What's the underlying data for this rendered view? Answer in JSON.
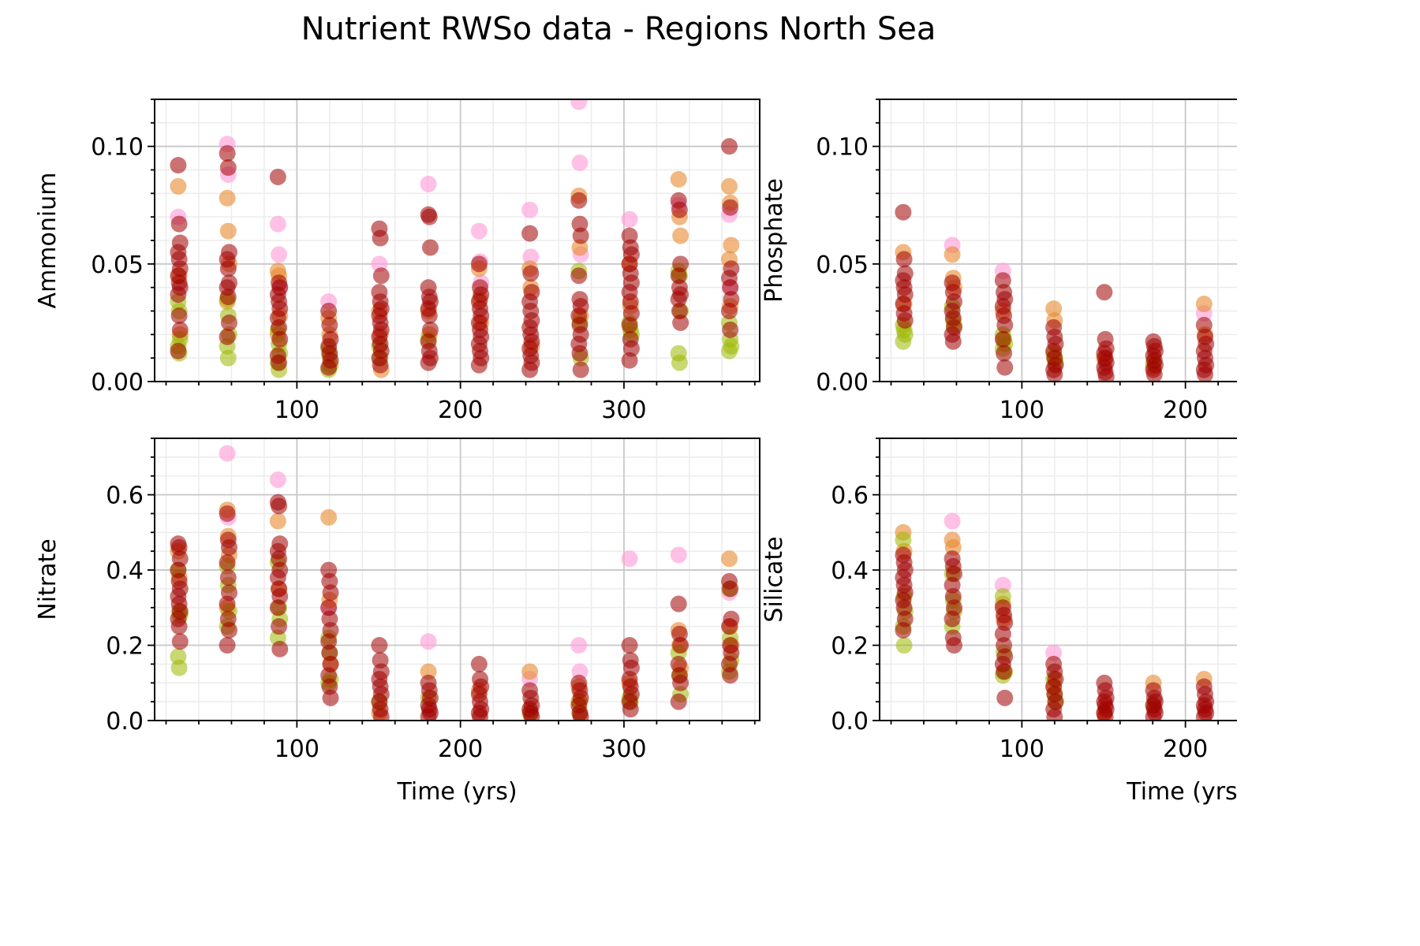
{
  "title": "Nutrient RWSo data - Regions North Sea",
  "colors": {
    "pink": "#ff9fd8",
    "orange": "#e8882f",
    "olive": "#9cb800",
    "darkred": "#a00000",
    "darkgreen": "#3f6b00"
  },
  "chart_data": [
    {
      "type": "scatter",
      "ylabel": "Ammonium",
      "xlabel": "",
      "xlim": [
        13,
        383
      ],
      "ylim": [
        0,
        0.12
      ],
      "xticks": [
        "100",
        "200",
        "300"
      ],
      "yticks": [
        "0.00",
        "0.05",
        "0.10"
      ],
      "grid": true,
      "months": [
        {
          "x": 28,
          "pink": [
            0.07
          ],
          "orange": [
            0.083,
            0.045,
            0.02
          ],
          "olive": [
            0.034,
            0.03,
            0.018,
            0.015,
            0.012
          ],
          "darkred": [
            0.092,
            0.067,
            0.059,
            0.055,
            0.052,
            0.048,
            0.045,
            0.042,
            0.04,
            0.037,
            0.028,
            0.022,
            0.013
          ]
        },
        {
          "x": 58,
          "pink": [
            0.101,
            0.088
          ],
          "orange": [
            0.078,
            0.064,
            0.05,
            0.034
          ],
          "olive": [
            0.035,
            0.028,
            0.02,
            0.015,
            0.01
          ],
          "darkred": [
            0.097,
            0.091,
            0.055,
            0.052,
            0.048,
            0.042,
            0.04,
            0.036,
            0.025,
            0.019
          ]
        },
        {
          "x": 89,
          "pink": [
            0.067,
            0.054,
            0.04
          ],
          "orange": [
            0.047,
            0.045,
            0.028,
            0.02
          ],
          "olive": [
            0.022,
            0.016,
            0.012,
            0.008,
            0.005
          ],
          "darkred": [
            0.087,
            0.042,
            0.04,
            0.037,
            0.034,
            0.031,
            0.027,
            0.023,
            0.018,
            0.011,
            0.008
          ]
        },
        {
          "x": 120,
          "pink": [
            0.034
          ],
          "orange": [
            0.027,
            0.02
          ],
          "olive": [
            0.014,
            0.011,
            0.007,
            0.005
          ],
          "darkred": [
            0.03,
            0.024,
            0.018,
            0.015,
            0.012,
            0.009,
            0.006
          ]
        },
        {
          "x": 151,
          "pink": [
            0.05
          ],
          "orange": [
            0.03,
            0.02,
            0.005
          ],
          "olive": [
            0.015,
            0.01
          ],
          "darkred": [
            0.065,
            0.061,
            0.045,
            0.038,
            0.034,
            0.031,
            0.028,
            0.025,
            0.022,
            0.019,
            0.016,
            0.013,
            0.01,
            0.007
          ]
        },
        {
          "x": 181,
          "pink": [
            0.084
          ],
          "orange": [
            0.03,
            0.02
          ],
          "olive": [
            0.018
          ],
          "darkred": [
            0.071,
            0.07,
            0.057,
            0.04,
            0.036,
            0.034,
            0.031,
            0.028,
            0.022,
            0.017,
            0.013,
            0.01,
            0.008
          ]
        },
        {
          "x": 212,
          "pink": [
            0.064,
            0.051,
            0.042
          ],
          "orange": [
            0.048,
            0.035,
            0.025
          ],
          "olive": [],
          "darkred": [
            0.05,
            0.04,
            0.037,
            0.034,
            0.031,
            0.028,
            0.025,
            0.022,
            0.019,
            0.016,
            0.013,
            0.01,
            0.007
          ]
        },
        {
          "x": 243,
          "pink": [
            0.073,
            0.053
          ],
          "orange": [
            0.048,
            0.04,
            0.015
          ],
          "olive": [],
          "darkred": [
            0.063,
            0.046,
            0.038,
            0.034,
            0.03,
            0.026,
            0.023,
            0.02,
            0.017,
            0.014,
            0.011,
            0.008,
            0.005
          ]
        },
        {
          "x": 273,
          "pink": [
            0.119,
            0.093,
            0.054
          ],
          "orange": [
            0.079,
            0.057,
            0.028
          ],
          "olive": [
            0.047,
            0.025,
            0.01
          ],
          "darkred": [
            0.077,
            0.067,
            0.062,
            0.045,
            0.035,
            0.032,
            0.028,
            0.024,
            0.02,
            0.016,
            0.012,
            0.005
          ]
        },
        {
          "x": 304,
          "pink": [
            0.069
          ],
          "orange": [
            0.05,
            0.032
          ],
          "olive": [
            0.025,
            0.022,
            0.02
          ],
          "darkred": [
            0.062,
            0.057,
            0.054,
            0.05,
            0.046,
            0.042,
            0.038,
            0.034,
            0.029,
            0.024,
            0.018,
            0.014,
            0.009
          ]
        },
        {
          "x": 334,
          "pink": [
            0.075
          ],
          "orange": [
            0.086,
            0.07,
            0.062
          ],
          "olive": [
            0.047,
            0.045,
            0.03,
            0.012,
            0.008
          ],
          "darkred": [
            0.077,
            0.073,
            0.05,
            0.045,
            0.04,
            0.037,
            0.035,
            0.03,
            0.025
          ]
        },
        {
          "x": 365,
          "pink": [
            0.071,
            0.04
          ],
          "orange": [
            0.083,
            0.076,
            0.058,
            0.052,
            0.032
          ],
          "olive": [
            0.025,
            0.018,
            0.015,
            0.013
          ],
          "darkred": [
            0.1,
            0.074,
            0.048,
            0.044,
            0.04,
            0.035,
            0.03,
            0.022
          ]
        }
      ]
    },
    {
      "type": "scatter",
      "ylabel": "Phosphate",
      "xlabel": "",
      "xlim": [
        13,
        383
      ],
      "ylim": [
        0,
        0.12
      ],
      "xticks": [
        "100",
        "200"
      ],
      "yticks": [
        "0.00",
        "0.05",
        "0.10"
      ],
      "grid": true,
      "months": [
        {
          "x": 28,
          "pink": [],
          "orange": [
            0.055,
            0.033
          ],
          "olive": [
            0.024,
            0.022,
            0.02,
            0.017
          ],
          "darkred": [
            0.072,
            0.052,
            0.046,
            0.043,
            0.04,
            0.037,
            0.033,
            0.029,
            0.026
          ]
        },
        {
          "x": 58,
          "pink": [
            0.058
          ],
          "orange": [
            0.054,
            0.044,
            0.04
          ],
          "olive": [
            0.032,
            0.026,
            0.024
          ],
          "darkred": [
            0.042,
            0.038,
            0.034,
            0.03,
            0.027,
            0.023,
            0.02,
            0.017
          ]
        },
        {
          "x": 89,
          "pink": [
            0.047
          ],
          "orange": [
            0.03
          ],
          "olive": [
            0.02,
            0.018,
            0.016,
            0.014
          ],
          "darkred": [
            0.043,
            0.038,
            0.035,
            0.032,
            0.028,
            0.024,
            0.018,
            0.012,
            0.006
          ]
        },
        {
          "x": 120,
          "pink": [],
          "orange": [
            0.031,
            0.026
          ],
          "olive": [
            0.012,
            0.01,
            0.008
          ],
          "darkred": [
            0.023,
            0.019,
            0.016,
            0.013,
            0.01,
            0.007,
            0.005,
            0.003
          ]
        },
        {
          "x": 151,
          "pink": [],
          "orange": [
            0.01
          ],
          "olive": [],
          "darkred": [
            0.038,
            0.018,
            0.014,
            0.012,
            0.01,
            0.008,
            0.006,
            0.004,
            0.002
          ]
        },
        {
          "x": 181,
          "pink": [],
          "orange": [
            0.006
          ],
          "olive": [
            0.008
          ],
          "darkred": [
            0.017,
            0.015,
            0.013,
            0.011,
            0.009,
            0.007,
            0.005,
            0.003
          ]
        },
        {
          "x": 212,
          "pink": [
            0.029
          ],
          "orange": [
            0.033,
            0.02
          ],
          "olive": [],
          "darkred": [
            0.024,
            0.019,
            0.016,
            0.013,
            0.01,
            0.007,
            0.005,
            0.003
          ]
        }
      ]
    },
    {
      "type": "scatter",
      "ylabel": "Nitrate",
      "xlabel": "Time (yrs)",
      "xlim": [
        13,
        383
      ],
      "ylim": [
        0,
        0.75
      ],
      "xticks": [
        "100",
        "200",
        "300"
      ],
      "yticks": [
        "0.0",
        "0.2",
        "0.4",
        "0.6"
      ],
      "grid": true,
      "months": [
        {
          "x": 28,
          "pink": [],
          "orange": [
            0.45,
            0.38
          ],
          "olive": [
            0.4,
            0.29,
            0.28,
            0.17,
            0.14
          ],
          "darkred": [
            0.47,
            0.46,
            0.43,
            0.4,
            0.37,
            0.35,
            0.33,
            0.31,
            0.29,
            0.27,
            0.25,
            0.21
          ]
        },
        {
          "x": 58,
          "pink": [
            0.71,
            0.54
          ],
          "orange": [
            0.56,
            0.49,
            0.44,
            0.3
          ],
          "olive": [
            0.41,
            0.36,
            0.29,
            0.25
          ],
          "darkred": [
            0.55,
            0.48,
            0.46,
            0.42,
            0.38,
            0.34,
            0.31,
            0.27,
            0.24,
            0.2
          ]
        },
        {
          "x": 89,
          "pink": [
            0.64
          ],
          "orange": [
            0.53,
            0.35
          ],
          "olive": [
            0.42,
            0.3,
            0.27,
            0.22
          ],
          "darkred": [
            0.58,
            0.57,
            0.47,
            0.45,
            0.43,
            0.4,
            0.38,
            0.35,
            0.33,
            0.3,
            0.25,
            0.19
          ]
        },
        {
          "x": 120,
          "pink": [
            0.3
          ],
          "orange": [
            0.54,
            0.32,
            0.15
          ],
          "olive": [
            0.22,
            0.18,
            0.11,
            0.1
          ],
          "darkred": [
            0.4,
            0.37,
            0.34,
            0.3,
            0.27,
            0.24,
            0.21,
            0.18,
            0.15,
            0.12,
            0.09,
            0.06
          ]
        },
        {
          "x": 151,
          "pink": [],
          "orange": [
            0.02
          ],
          "olive": [
            0.05
          ],
          "darkred": [
            0.2,
            0.16,
            0.13,
            0.11,
            0.09,
            0.07,
            0.05,
            0.03,
            0.01
          ]
        },
        {
          "x": 181,
          "pink": [
            0.21
          ],
          "orange": [
            0.13
          ],
          "olive": [
            0.06
          ],
          "darkred": [
            0.1,
            0.08,
            0.06,
            0.04,
            0.03,
            0.02,
            0.01
          ]
        },
        {
          "x": 212,
          "pink": [],
          "orange": [
            0.08
          ],
          "olive": [],
          "darkred": [
            0.15,
            0.11,
            0.09,
            0.07,
            0.05,
            0.03,
            0.02,
            0.01
          ]
        },
        {
          "x": 243,
          "pink": [
            0.11
          ],
          "orange": [
            0.13
          ],
          "olive": [
            0.02
          ],
          "darkred": [
            0.08,
            0.06,
            0.04,
            0.03,
            0.02,
            0.01
          ]
        },
        {
          "x": 273,
          "pink": [
            0.2,
            0.13
          ],
          "orange": [
            0.09,
            0.05
          ],
          "olive": [
            0.05,
            0.02
          ],
          "darkred": [
            0.1,
            0.08,
            0.06,
            0.04,
            0.02,
            0.01
          ]
        },
        {
          "x": 304,
          "pink": [
            0.43
          ],
          "orange": [
            0.1
          ],
          "olive": [
            0.06,
            0.05
          ],
          "darkred": [
            0.2,
            0.16,
            0.14,
            0.11,
            0.09,
            0.07,
            0.05,
            0.03
          ]
        },
        {
          "x": 334,
          "pink": [
            0.44
          ],
          "orange": [
            0.24,
            0.2,
            0.14
          ],
          "olive": [
            0.18,
            0.12,
            0.07
          ],
          "darkred": [
            0.31,
            0.23,
            0.2,
            0.15,
            0.12,
            0.1,
            0.05
          ]
        },
        {
          "x": 365,
          "pink": [
            0.34
          ],
          "orange": [
            0.43,
            0.25,
            0.2
          ],
          "olive": [
            0.35,
            0.22,
            0.16,
            0.13
          ],
          "darkred": [
            0.37,
            0.35,
            0.27,
            0.25,
            0.2,
            0.18,
            0.15,
            0.12
          ]
        }
      ]
    },
    {
      "type": "scatter",
      "ylabel": "Silicate",
      "xlabel": "Time (yrs",
      "xlim": [
        13,
        383
      ],
      "ylim": [
        0,
        0.75
      ],
      "xticks": [
        "100",
        "200"
      ],
      "yticks": [
        "0.0",
        "0.2",
        "0.4",
        "0.6"
      ],
      "grid": true,
      "months": [
        {
          "x": 28,
          "pink": [],
          "orange": [
            0.5,
            0.45
          ],
          "olive": [
            0.48,
            0.33,
            0.29,
            0.25,
            0.2
          ],
          "darkred": [
            0.44,
            0.42,
            0.4,
            0.38,
            0.36,
            0.34,
            0.32,
            0.3,
            0.27,
            0.24
          ]
        },
        {
          "x": 58,
          "pink": [
            0.53
          ],
          "orange": [
            0.48,
            0.46
          ],
          "olive": [
            0.39,
            0.32,
            0.29,
            0.25
          ],
          "darkred": [
            0.43,
            0.41,
            0.39,
            0.36,
            0.33,
            0.3,
            0.27,
            0.22,
            0.2
          ]
        },
        {
          "x": 89,
          "pink": [
            0.36
          ],
          "orange": [
            0.31,
            0.27
          ],
          "olive": [
            0.33,
            0.18,
            0.13,
            0.12
          ],
          "darkred": [
            0.3,
            0.28,
            0.26,
            0.23,
            0.2,
            0.17,
            0.15,
            0.13,
            0.06
          ]
        },
        {
          "x": 120,
          "pink": [
            0.18
          ],
          "orange": [
            0.09
          ],
          "olive": [
            0.11,
            0.07,
            0.05
          ],
          "darkred": [
            0.15,
            0.13,
            0.11,
            0.09,
            0.07,
            0.05,
            0.03,
            0.01
          ]
        },
        {
          "x": 151,
          "pink": [],
          "orange": [
            0.02
          ],
          "olive": [],
          "darkred": [
            0.1,
            0.08,
            0.06,
            0.05,
            0.04,
            0.03,
            0.02,
            0.01
          ]
        },
        {
          "x": 181,
          "pink": [],
          "orange": [
            0.1
          ],
          "olive": [
            0.04
          ],
          "darkred": [
            0.08,
            0.06,
            0.05,
            0.04,
            0.03,
            0.02,
            0.01
          ]
        },
        {
          "x": 212,
          "pink": [],
          "orange": [
            0.11
          ],
          "olive": [],
          "darkred": [
            0.09,
            0.07,
            0.05,
            0.04,
            0.03,
            0.02,
            0.01
          ]
        }
      ]
    }
  ]
}
